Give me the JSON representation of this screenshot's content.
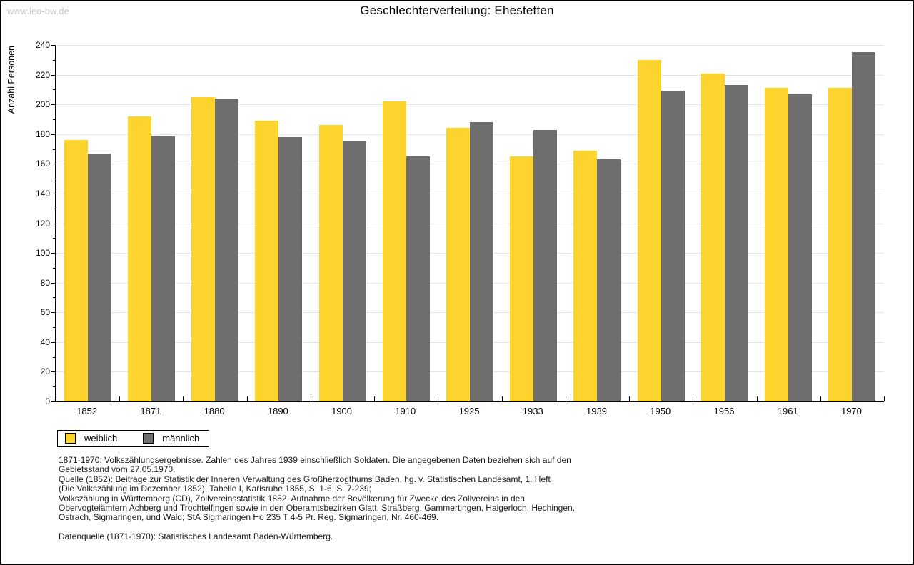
{
  "watermark": "www.leo-bw.de",
  "title": "Geschlechterverteilung: Ehestetten",
  "chart_data": {
    "type": "bar",
    "title": "Geschlechterverteilung: Ehestetten",
    "xlabel": "",
    "ylabel": "Anzahl Personen",
    "ylim": [
      0,
      240
    ],
    "ytick_step": 20,
    "ytick_minor_step": 10,
    "grid": true,
    "legend_position": "bottom-left",
    "categories": [
      "1852",
      "1871",
      "1880",
      "1890",
      "1900",
      "1910",
      "1925",
      "1933",
      "1939",
      "1950",
      "1956",
      "1961",
      "1970"
    ],
    "series": [
      {
        "name": "weiblich",
        "color": "#FDD32D",
        "values": [
          176,
          192,
          205,
          189,
          186,
          202,
          184,
          165,
          169,
          230,
          221,
          211,
          211
        ]
      },
      {
        "name": "männlich",
        "color": "#6E6E6E",
        "values": [
          167,
          179,
          204,
          178,
          175,
          165,
          188,
          183,
          163,
          209,
          213,
          207,
          235
        ]
      }
    ]
  },
  "footer": {
    "lines": [
      "1871-1970: Volkszählungsergebnisse. Zahlen des Jahres 1939 einschließlich Soldaten. Die angegebenen Daten beziehen sich auf den",
      "Gebietsstand vom 27.05.1970.",
      "Quelle (1852): Beiträge zur Statistik der Inneren Verwaltung des Großherzogthums Baden, hg. v. Statistischen Landesamt, 1. Heft",
      "(Die Volkszählung im Dezember 1852), Tabelle I, Karlsruhe 1855, S. 1-6, S. 7-239;",
      "Volkszählung in Württemberg (CD), Zollvereinsstatistik 1852. Aufnahme der Bevölkerung für Zwecke des Zollvereins in den",
      "Obervogteiämtern Achberg und Trochtelfingen sowie in den Oberamtsbezirken Glatt, Straßberg, Gammertingen, Haigerloch, Hechingen,",
      "Ostrach, Sigmaringen, und Wald; StA Sigmaringen Ho 235 T 4-5 Pr. Reg. Sigmaringen, Nr. 460-469."
    ],
    "datasource": "Datenquelle (1871-1970): Statistisches Landesamt Baden-Württemberg."
  }
}
